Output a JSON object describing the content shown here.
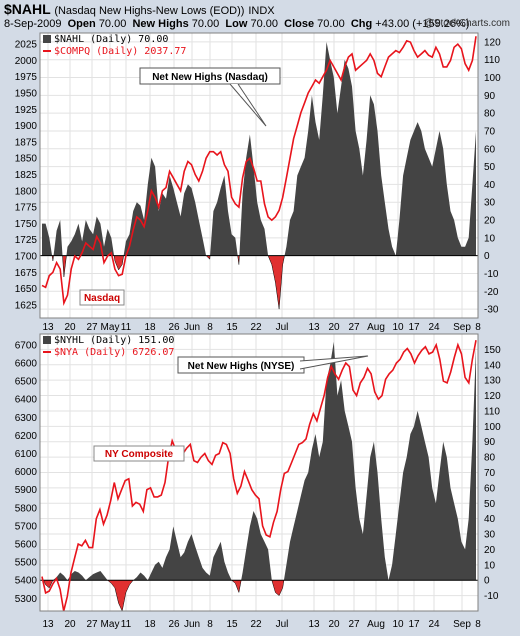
{
  "header": {
    "symbol": "$NAHL",
    "description": "(Nasdaq New Highs-New Lows (EOD))",
    "exchange": "INDX",
    "date": "8-Sep-2009",
    "open_label": "Open",
    "open": "70.00",
    "high_label": "New Highs",
    "high": "70.00",
    "low_label": "Low",
    "low": "70.00",
    "close_label": "Close",
    "close": "70.00",
    "chg_label": "Chg",
    "chg": "+43.00 (+159.26%)",
    "watermark": "@StockCharts.com"
  },
  "colors": {
    "area": "#444444",
    "area_neg": "#e03030",
    "line": "#e8141c",
    "label_red": "#cc0000",
    "background": "#d3dbe6"
  },
  "chart_data": [
    {
      "type": "area",
      "legend": [
        "$NAHL (Daily) 70.00",
        "$COMPQ (Daily) 2037.77"
      ],
      "legend_position": "top-left",
      "label": "Nasdaq",
      "annotation": "Net New Highs (Nasdaq)",
      "right_ticks": [
        -30,
        -20,
        -10,
        0,
        10,
        20,
        30,
        40,
        50,
        60,
        70,
        80,
        90,
        100,
        110,
        120
      ],
      "right_range": [
        -35,
        125
      ],
      "left_ticks": [
        1625,
        1650,
        1675,
        1700,
        1725,
        1750,
        1775,
        1800,
        1825,
        1850,
        1875,
        1900,
        1925,
        1950,
        1975,
        2000,
        2025
      ],
      "left_range": [
        1605,
        2042
      ],
      "x_ticks": [
        "13",
        "20",
        "27",
        "May",
        "11",
        "18",
        "26",
        "Jun",
        "8",
        "15",
        "22",
        "Jul",
        "13",
        "20",
        "27",
        "Aug",
        "10",
        "17",
        "24",
        "Sep",
        "8"
      ],
      "grid": true,
      "series": [
        {
          "name": "$NAHL",
          "values": [
            18,
            18,
            10,
            -3,
            14,
            20,
            -12,
            5,
            8,
            12,
            18,
            8,
            20,
            15,
            12,
            22,
            18,
            5,
            15,
            10,
            -3,
            -8,
            -5,
            8,
            12,
            25,
            30,
            28,
            20,
            40,
            55,
            50,
            25,
            35,
            32,
            45,
            38,
            30,
            22,
            35,
            40,
            38,
            30,
            20,
            10,
            0,
            -2,
            25,
            30,
            38,
            45,
            25,
            12,
            10,
            -5,
            35,
            55,
            68,
            50,
            30,
            20,
            15,
            0,
            -5,
            -15,
            -30,
            -5,
            5,
            20,
            25,
            45,
            50,
            55,
            70,
            90,
            75,
            65,
            90,
            120,
            110,
            100,
            80,
            95,
            110,
            105,
            95,
            70,
            60,
            45,
            65,
            90,
            85,
            70,
            45,
            30,
            15,
            5,
            0,
            20,
            45,
            55,
            65,
            70,
            75,
            70,
            60,
            55,
            50,
            60,
            70,
            60,
            40,
            25,
            20,
            10,
            5,
            5,
            10,
            40,
            70
          ]
        },
        {
          "name": "$COMPQ",
          "values": [
            1655,
            1652,
            1670,
            1675,
            1690,
            1680,
            1628,
            1640,
            1680,
            1700,
            1695,
            1705,
            1720,
            1715,
            1710,
            1730,
            1720,
            1690,
            1700,
            1705,
            1680,
            1670,
            1672,
            1700,
            1715,
            1740,
            1760,
            1755,
            1745,
            1770,
            1800,
            1790,
            1775,
            1800,
            1805,
            1830,
            1820,
            1810,
            1800,
            1830,
            1845,
            1840,
            1825,
            1815,
            1830,
            1850,
            1860,
            1860,
            1855,
            1860,
            1840,
            1830,
            1790,
            1780,
            1775,
            1820,
            1845,
            1850,
            1835,
            1815,
            1815,
            1780,
            1760,
            1755,
            1760,
            1770,
            1790,
            1820,
            1850,
            1880,
            1900,
            1920,
            1935,
            1950,
            1960,
            1970,
            1965,
            1975,
            1985,
            2000,
            1990,
            1980,
            1970,
            1990,
            2005,
            2010,
            1985,
            1990,
            1995,
            2000,
            2010,
            2000,
            1980,
            1975,
            1990,
            2005,
            2010,
            2015,
            2012,
            2020,
            2030,
            2028,
            2015,
            2005,
            2010,
            2015,
            2008,
            2005,
            2020,
            2010,
            1990,
            1990,
            2000,
            2020,
            2025,
            2018,
            1995,
            1985,
            2000,
            2037
          ]
        }
      ]
    },
    {
      "type": "area",
      "legend": [
        "$NYHL (Daily) 151.00",
        "$NYA (Daily) 6726.07"
      ],
      "legend_position": "top-left",
      "label": "NY Composite",
      "annotation": "Net New Highs (NYSE)",
      "right_ticks": [
        -10,
        0,
        10,
        20,
        30,
        40,
        50,
        60,
        70,
        80,
        90,
        100,
        110,
        120,
        130,
        140,
        150
      ],
      "right_range": [
        -20,
        160
      ],
      "left_ticks": [
        5300,
        5400,
        5500,
        5600,
        5700,
        5800,
        5900,
        6000,
        6100,
        6200,
        6300,
        6400,
        6500,
        6600,
        6700
      ],
      "left_range": [
        5230,
        6760
      ],
      "x_ticks": [
        "13",
        "20",
        "27",
        "May",
        "11",
        "18",
        "26",
        "Jun",
        "8",
        "15",
        "22",
        "Jul",
        "13",
        "20",
        "27",
        "Aug",
        "10",
        "17",
        "24",
        "Sep",
        "8"
      ],
      "grid": true,
      "series": [
        {
          "name": "$NYHL",
          "values": [
            2,
            -3,
            -5,
            0,
            2,
            5,
            3,
            0,
            4,
            6,
            5,
            3,
            0,
            2,
            4,
            5,
            6,
            3,
            0,
            -2,
            -5,
            -15,
            -20,
            -8,
            -3,
            0,
            2,
            5,
            3,
            0,
            5,
            10,
            12,
            8,
            15,
            20,
            35,
            25,
            15,
            18,
            25,
            30,
            22,
            15,
            8,
            5,
            3,
            15,
            20,
            25,
            12,
            5,
            0,
            -2,
            -8,
            5,
            20,
            35,
            45,
            40,
            30,
            25,
            20,
            0,
            -8,
            -10,
            -5,
            10,
            25,
            35,
            45,
            55,
            65,
            70,
            85,
            95,
            80,
            90,
            130,
            140,
            155,
            120,
            130,
            110,
            100,
            90,
            60,
            40,
            30,
            55,
            80,
            90,
            70,
            40,
            15,
            0,
            10,
            30,
            50,
            70,
            80,
            95,
            100,
            110,
            100,
            90,
            80,
            60,
            50,
            70,
            90,
            80,
            60,
            50,
            40,
            25,
            20,
            40,
            90,
            151
          ]
        },
        {
          "name": "$NYA",
          "values": [
            5420,
            5330,
            5340,
            5380,
            5410,
            5350,
            5230,
            5310,
            5440,
            5520,
            5600,
            5590,
            5620,
            5580,
            5580,
            5740,
            5790,
            5710,
            5760,
            5840,
            5940,
            5850,
            5900,
            5950,
            5960,
            5810,
            5830,
            5820,
            5780,
            5900,
            5910,
            5860,
            5860,
            5870,
            5940,
            6080,
            6170,
            6120,
            6080,
            6100,
            6130,
            6150,
            6060,
            6050,
            6080,
            6100,
            6060,
            6040,
            6090,
            6100,
            6160,
            6150,
            6100,
            5960,
            5880,
            5920,
            6000,
            5950,
            5900,
            5870,
            5850,
            5700,
            5650,
            5640,
            5720,
            5780,
            5900,
            5990,
            6000,
            6050,
            6100,
            6150,
            6160,
            6180,
            6260,
            6320,
            6280,
            6350,
            6420,
            6520,
            6580,
            6540,
            6510,
            6560,
            6600,
            6580,
            6450,
            6420,
            6490,
            6520,
            6570,
            6540,
            6440,
            6400,
            6420,
            6510,
            6540,
            6560,
            6600,
            6620,
            6660,
            6680,
            6650,
            6600,
            6640,
            6670,
            6690,
            6650,
            6660,
            6700,
            6620,
            6500,
            6490,
            6550,
            6630,
            6700,
            6650,
            6520,
            6490,
            6620,
            6726
          ]
        }
      ]
    }
  ]
}
